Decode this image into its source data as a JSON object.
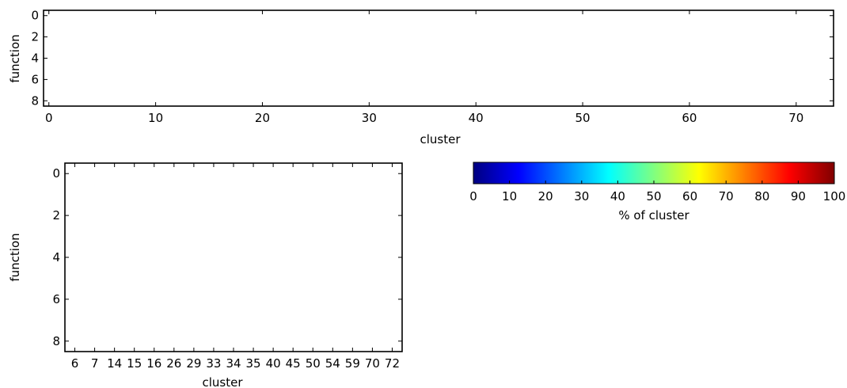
{
  "chart_data": [
    {
      "type": "heatmap",
      "xlabel": "cluster",
      "ylabel": "function",
      "xlim": [
        -0.5,
        73.5
      ],
      "ylim": [
        8.5,
        -0.5
      ],
      "x_ticks": [
        0,
        10,
        20,
        30,
        40,
        50,
        60,
        70
      ],
      "x_tick_labels": [
        "0",
        "10",
        "20",
        "30",
        "40",
        "50",
        "60",
        "70"
      ],
      "y_ticks": [
        0,
        2,
        4,
        6,
        8
      ],
      "y_tick_labels": [
        "0",
        "2",
        "4",
        "6",
        "8"
      ],
      "values": []
    },
    {
      "type": "heatmap",
      "xlabel": "cluster",
      "ylabel": "function",
      "xlim": [
        -0.5,
        16.5
      ],
      "ylim": [
        8.5,
        -0.5
      ],
      "x_ticks": [
        0,
        1,
        2,
        3,
        4,
        5,
        6,
        7,
        8,
        9,
        10,
        11,
        12,
        13,
        14,
        15,
        16
      ],
      "x_tick_labels": [
        "6",
        "7",
        "14",
        "15",
        "16",
        "26",
        "29",
        "33",
        "34",
        "35",
        "40",
        "45",
        "50",
        "54",
        "59",
        "70",
        "72"
      ],
      "y_ticks": [
        0,
        2,
        4,
        6,
        8
      ],
      "y_tick_labels": [
        "0",
        "2",
        "4",
        "6",
        "8"
      ],
      "values": []
    }
  ],
  "colorbar": {
    "label": "% of cluster",
    "min": 0,
    "max": 100,
    "ticks": [
      0,
      10,
      20,
      30,
      40,
      50,
      60,
      70,
      80,
      90,
      100
    ],
    "tick_labels": [
      "0",
      "10",
      "20",
      "30",
      "40",
      "50",
      "60",
      "70",
      "80",
      "90",
      "100"
    ],
    "colormap": "jet",
    "stops": [
      "#000080",
      "#0000ff",
      "#0080ff",
      "#00ffff",
      "#80ff80",
      "#ffff00",
      "#ff8000",
      "#ff0000",
      "#800000"
    ]
  }
}
